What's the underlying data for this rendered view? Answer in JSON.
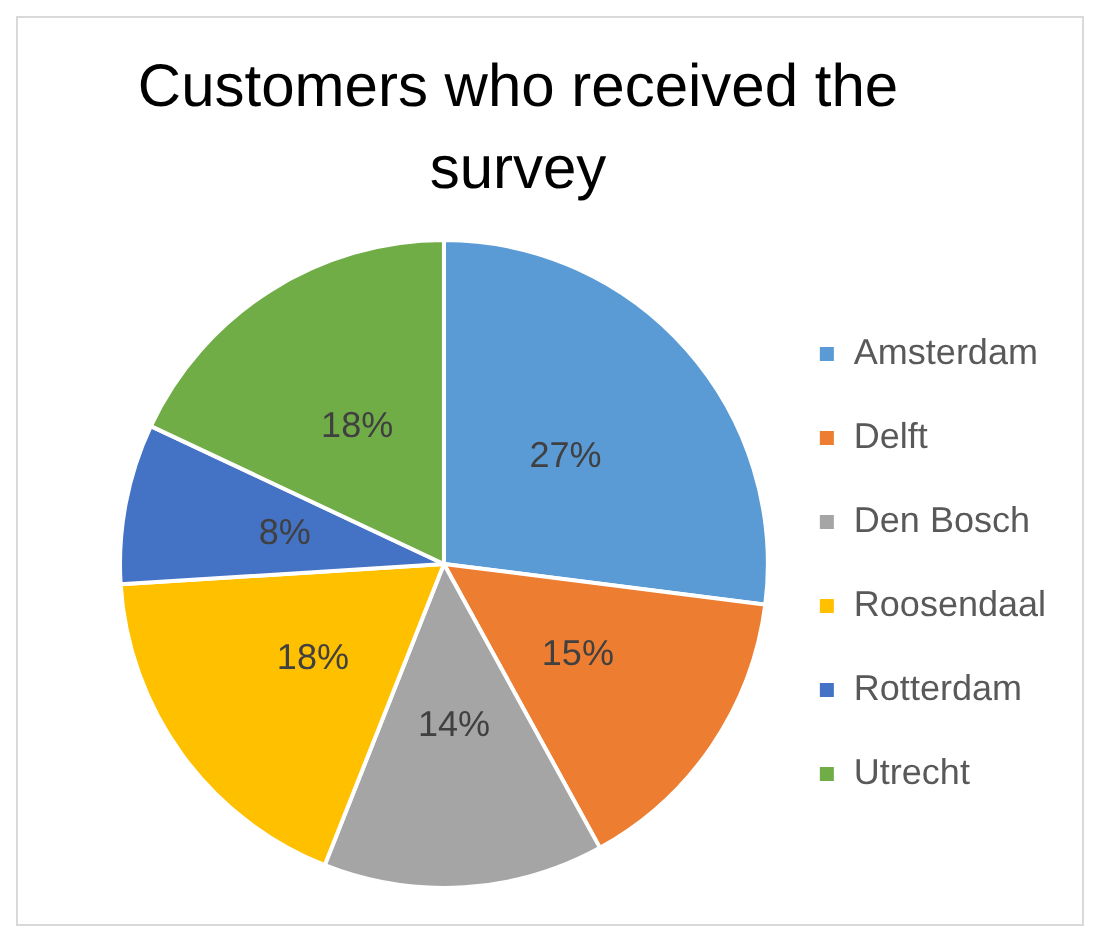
{
  "chart_data": {
    "type": "pie",
    "title": "Customers who received the survey",
    "categories": [
      "Amsterdam",
      "Delft",
      "Den Bosch",
      "Roosendaal",
      "Rotterdam",
      "Utrecht"
    ],
    "values": [
      27,
      15,
      14,
      18,
      8,
      18
    ],
    "value_labels": [
      "27%",
      "15%",
      "14%",
      "18%",
      "8%",
      "18%"
    ],
    "colors": [
      "#5b9bd5",
      "#ed7d31",
      "#a5a5a5",
      "#ffc000",
      "#4472c4",
      "#70ad47"
    ],
    "legend": "right"
  }
}
